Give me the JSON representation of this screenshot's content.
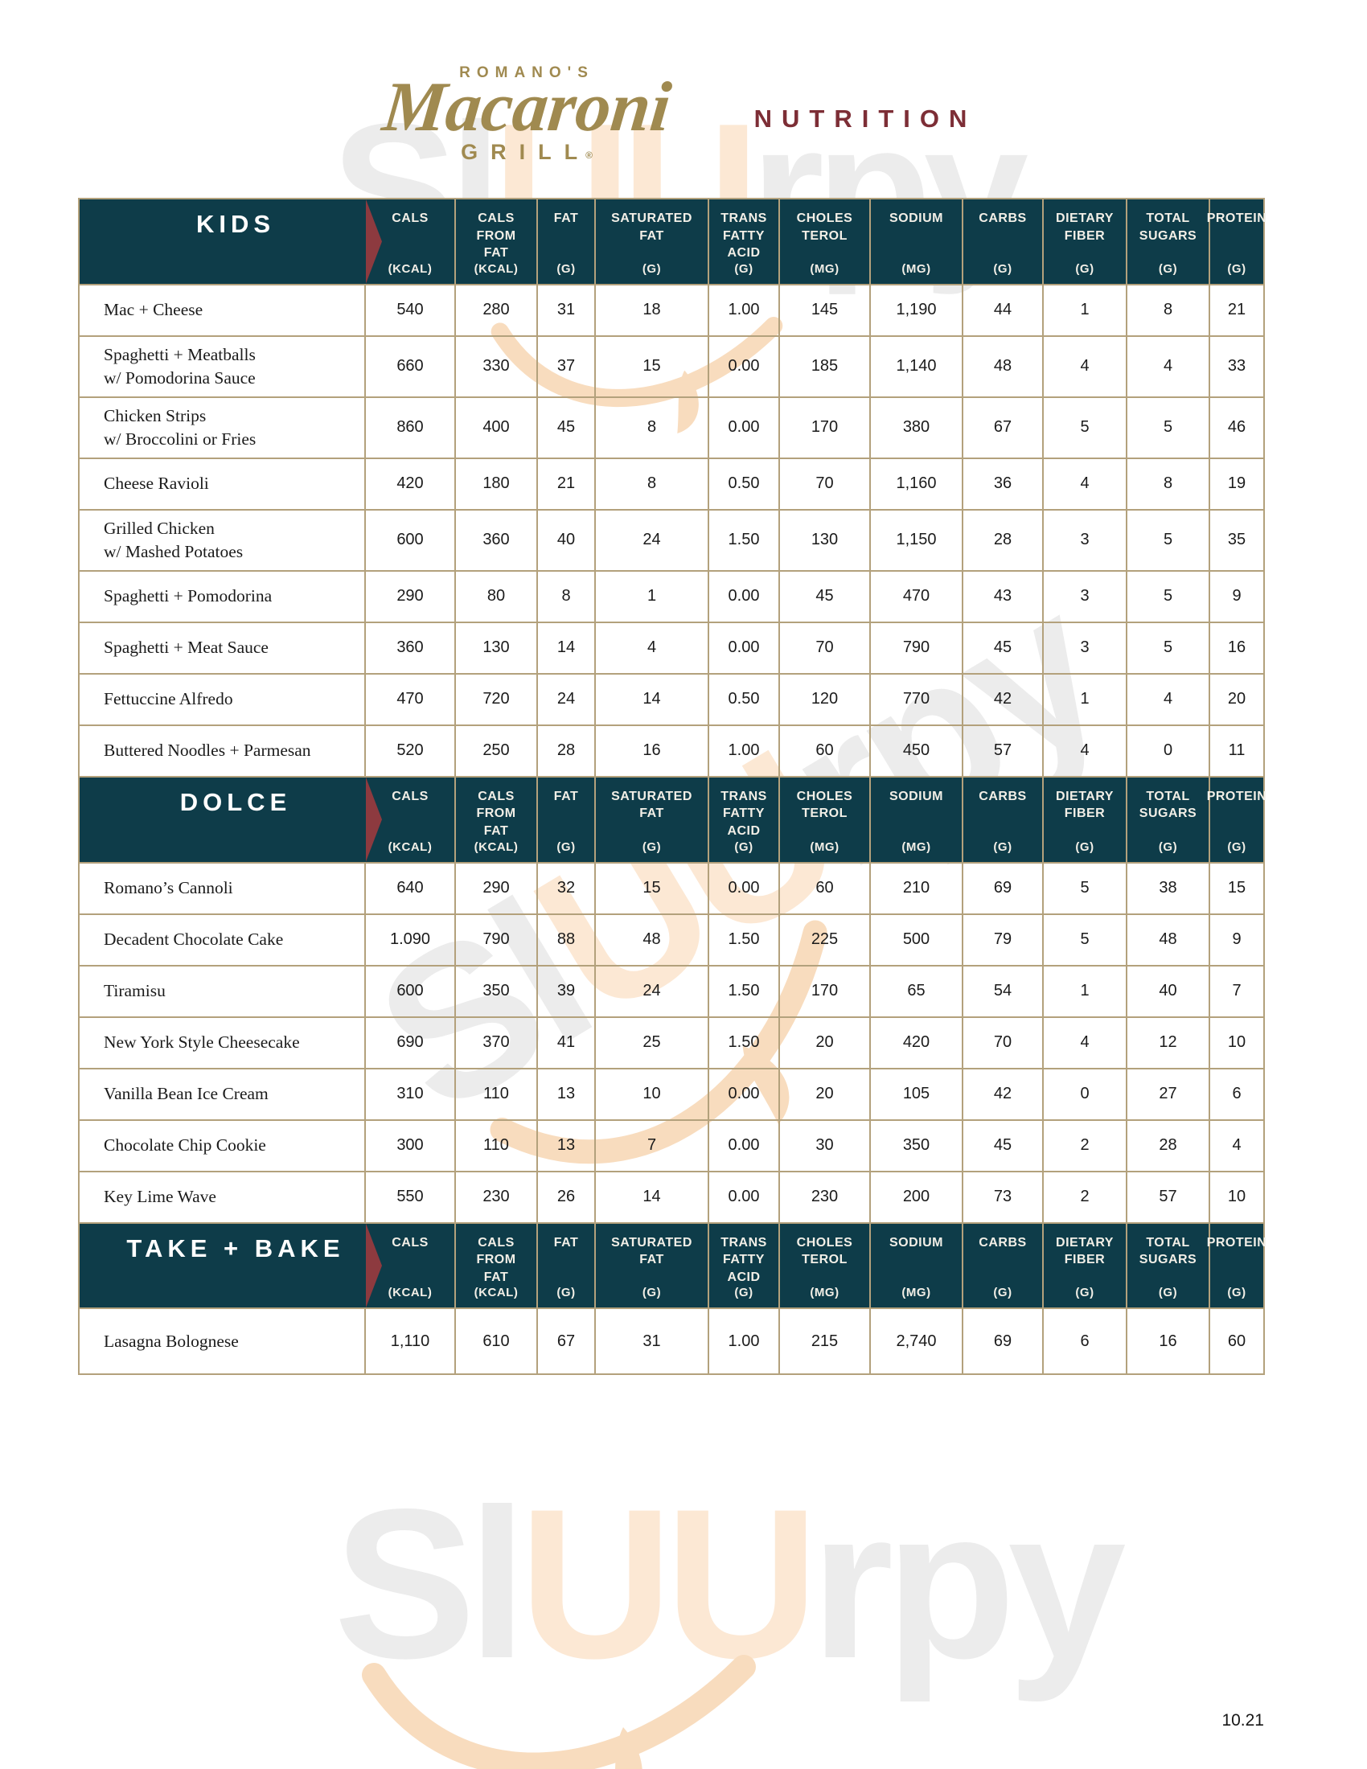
{
  "brand": {
    "romanos": "ROMANO'S",
    "macaroni": "Macaroni",
    "grill": "GRILL",
    "registered": "®",
    "nutrition": "NUTRITION"
  },
  "watermark": {
    "part1": "Sl",
    "part2": "UU",
    "part3": "rpy"
  },
  "page": {
    "footer_version": "10.21"
  },
  "columns": [
    {
      "lines": [
        "CALS"
      ],
      "unit": "(KCAL)"
    },
    {
      "lines": [
        "CALS",
        "FROM",
        "FAT"
      ],
      "unit": "(KCAL)"
    },
    {
      "lines": [
        "FAT"
      ],
      "unit": "(G)"
    },
    {
      "lines": [
        "SATURATED",
        "FAT"
      ],
      "unit": "(G)"
    },
    {
      "lines": [
        "TRANS",
        "FATTY",
        "ACID"
      ],
      "unit": "(G)"
    },
    {
      "lines": [
        "CHOLES",
        "TEROL"
      ],
      "unit": "(MG)"
    },
    {
      "lines": [
        "SODIUM"
      ],
      "unit": "(MG)"
    },
    {
      "lines": [
        "CARBS"
      ],
      "unit": "(G)"
    },
    {
      "lines": [
        "DIETARY",
        "FIBER"
      ],
      "unit": "(G)"
    },
    {
      "lines": [
        "TOTAL",
        "SUGARS"
      ],
      "unit": "(G)"
    },
    {
      "lines": [
        "PROTEIN"
      ],
      "unit": "(G)"
    }
  ],
  "sections": [
    {
      "title": "KIDS",
      "rows": [
        {
          "name_lines": [
            "Mac + Cheese"
          ],
          "values": [
            "540",
            "280",
            "31",
            "18",
            "1.00",
            "145",
            "1,190",
            "44",
            "1",
            "8",
            "21"
          ]
        },
        {
          "name_lines": [
            "Spaghetti + Meatballs",
            "w/ Pomodorina Sauce"
          ],
          "values": [
            "660",
            "330",
            "37",
            "15",
            "0.00",
            "185",
            "1,140",
            "48",
            "4",
            "4",
            "33"
          ]
        },
        {
          "name_lines": [
            "Chicken Strips",
            "w/ Broccolini or Fries"
          ],
          "values": [
            "860",
            "400",
            "45",
            "8",
            "0.00",
            "170",
            "380",
            "67",
            "5",
            "5",
            "46"
          ]
        },
        {
          "name_lines": [
            "Cheese Ravioli"
          ],
          "values": [
            "420",
            "180",
            "21",
            "8",
            "0.50",
            "70",
            "1,160",
            "36",
            "4",
            "8",
            "19"
          ]
        },
        {
          "name_lines": [
            "Grilled Chicken",
            "w/ Mashed Potatoes"
          ],
          "values": [
            "600",
            "360",
            "40",
            "24",
            "1.50",
            "130",
            "1,150",
            "28",
            "3",
            "5",
            "35"
          ]
        },
        {
          "name_lines": [
            "Spaghetti + Pomodorina"
          ],
          "values": [
            "290",
            "80",
            "8",
            "1",
            "0.00",
            "45",
            "470",
            "43",
            "3",
            "5",
            "9"
          ]
        },
        {
          "name_lines": [
            "Spaghetti + Meat Sauce"
          ],
          "values": [
            "360",
            "130",
            "14",
            "4",
            "0.00",
            "70",
            "790",
            "45",
            "3",
            "5",
            "16"
          ]
        },
        {
          "name_lines": [
            "Fettuccine Alfredo"
          ],
          "values": [
            "470",
            "720",
            "24",
            "14",
            "0.50",
            "120",
            "770",
            "42",
            "1",
            "4",
            "20"
          ]
        },
        {
          "name_lines": [
            "Buttered Noodles + Parmesan"
          ],
          "values": [
            "520",
            "250",
            "28",
            "16",
            "1.00",
            "60",
            "450",
            "57",
            "4",
            "0",
            "11"
          ]
        }
      ]
    },
    {
      "title": "DOLCE",
      "rows": [
        {
          "name_lines": [
            "Romano’s Cannoli"
          ],
          "values": [
            "640",
            "290",
            "32",
            "15",
            "0.00",
            "60",
            "210",
            "69",
            "5",
            "38",
            "15"
          ]
        },
        {
          "name_lines": [
            "Decadent Chocolate Cake"
          ],
          "values": [
            "1.090",
            "790",
            "88",
            "48",
            "1.50",
            "225",
            "500",
            "79",
            "5",
            "48",
            "9"
          ]
        },
        {
          "name_lines": [
            "Tiramisu"
          ],
          "values": [
            "600",
            "350",
            "39",
            "24",
            "1.50",
            "170",
            "65",
            "54",
            "1",
            "40",
            "7"
          ]
        },
        {
          "name_lines": [
            "New York Style Cheesecake"
          ],
          "values": [
            "690",
            "370",
            "41",
            "25",
            "1.50",
            "20",
            "420",
            "70",
            "4",
            "12",
            "10"
          ]
        },
        {
          "name_lines": [
            "Vanilla Bean Ice Cream"
          ],
          "values": [
            "310",
            "110",
            "13",
            "10",
            "0.00",
            "20",
            "105",
            "42",
            "0",
            "27",
            "6"
          ]
        },
        {
          "name_lines": [
            "Chocolate Chip Cookie"
          ],
          "values": [
            "300",
            "110",
            "13",
            "7",
            "0.00",
            "30",
            "350",
            "45",
            "2",
            "28",
            "4"
          ]
        },
        {
          "name_lines": [
            "Key Lime Wave"
          ],
          "values": [
            "550",
            "230",
            "26",
            "14",
            "0.00",
            "230",
            "200",
            "73",
            "2",
            "57",
            "10"
          ]
        }
      ]
    },
    {
      "title": "TAKE + BAKE",
      "rows": [
        {
          "name_lines": [
            "Lasagna Bolognese"
          ],
          "values": [
            "1,110",
            "610",
            "67",
            "31",
            "1.00",
            "215",
            "2,740",
            "69",
            "6",
            "16",
            "60"
          ]
        }
      ]
    }
  ]
}
